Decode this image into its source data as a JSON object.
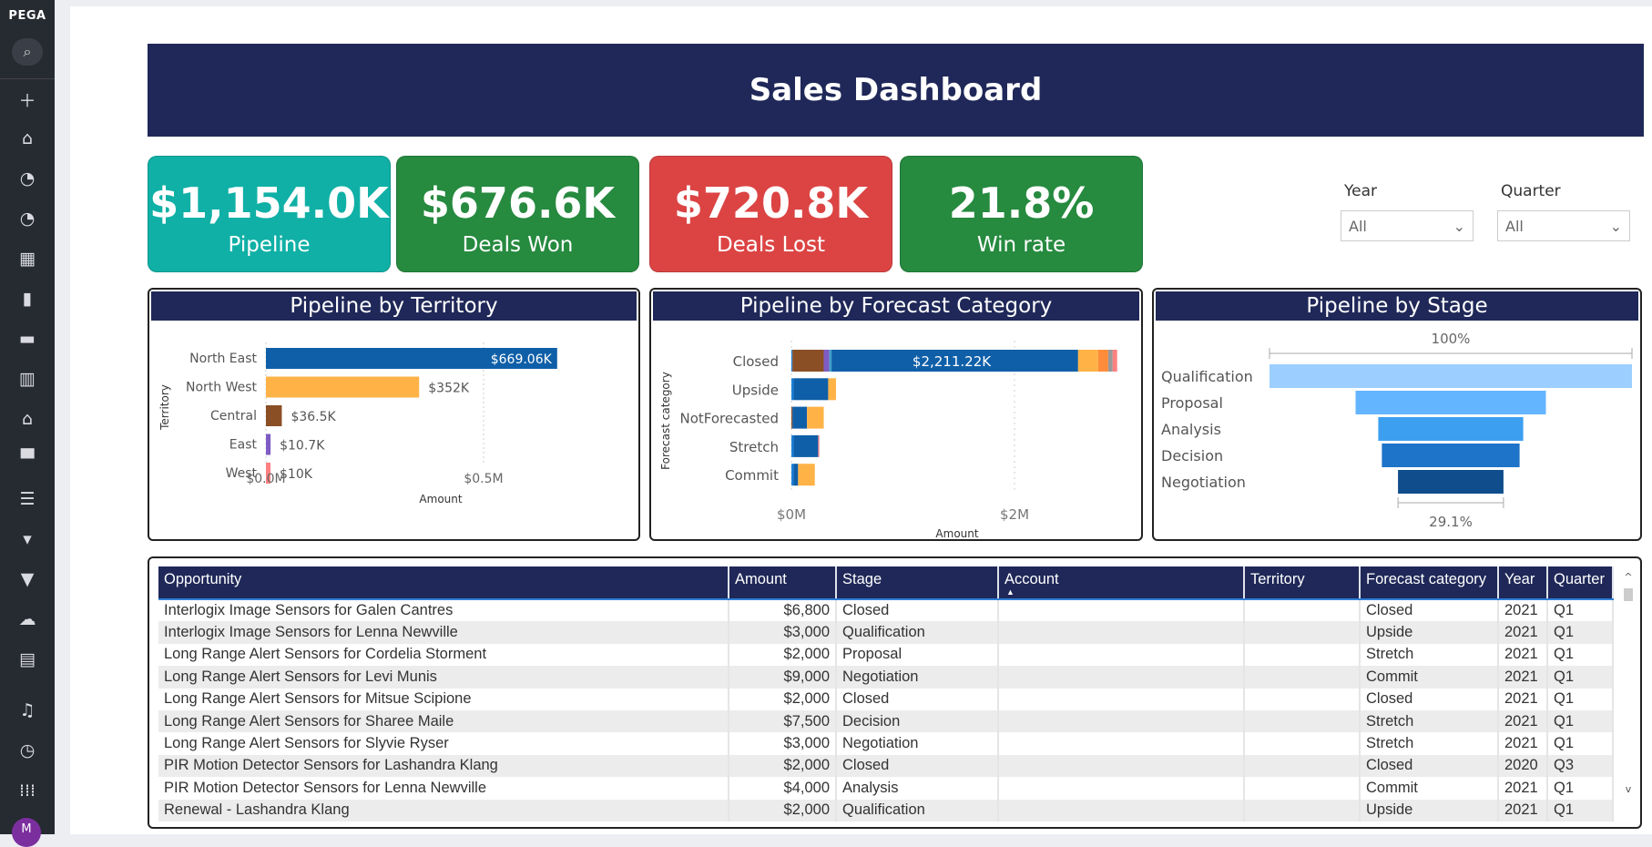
{
  "sidebar": {
    "logo": "PEGA",
    "avatar": "M",
    "icons": [
      "search-icon",
      "plus-icon",
      "home-icon",
      "gauge-icon",
      "gauge-icon-2",
      "grid-icon",
      "tag-icon",
      "inbox-icon",
      "buildings-icon",
      "house-icon",
      "folder-icon",
      "contacts-icon",
      "flashlight-icon",
      "funnel-icon",
      "weather-icon",
      "calendar-icon",
      "bell-icon",
      "history-icon",
      "apps-icon"
    ]
  },
  "header": {
    "title": "Sales Dashboard"
  },
  "kpis": [
    {
      "value": "$1,154.0K",
      "label": "Pipeline",
      "color": "#10b0a6"
    },
    {
      "value": "$676.6K",
      "label": "Deals Won",
      "color": "#268a3f"
    },
    {
      "value": "$720.8K",
      "label": "Deals Lost",
      "color": "#dc4444"
    },
    {
      "value": "21.8%",
      "label": "Win rate",
      "color": "#268a3f"
    }
  ],
  "filters": {
    "year_label": "Year",
    "year_value": "All",
    "quarter_label": "Quarter",
    "quarter_value": "All"
  },
  "chart_data": [
    {
      "type": "bar",
      "title": "Pipeline by Territory",
      "ylabel": "Territory",
      "xlabel": "Amount",
      "categories": [
        "North East",
        "North West",
        "Central",
        "East",
        "West"
      ],
      "values": [
        669060,
        352000,
        36500,
        10700,
        10000
      ],
      "labels": [
        "$669.06K",
        "$352K",
        "$36.5K",
        "$10.7K",
        "$10K"
      ],
      "colors": [
        "#0f5fa8",
        "#ffb347",
        "#8b4f25",
        "#7e5cc3",
        "#ff8080"
      ],
      "xticks": [
        "$0.0M",
        "$0.5M"
      ],
      "xlim": [
        0,
        700000
      ]
    },
    {
      "type": "bar",
      "stacked": true,
      "title": "Pipeline by Forecast Category",
      "ylabel": "Forecast category",
      "xlabel": "Amount",
      "categories": [
        "Closed",
        "Upside",
        "NotForecasted",
        "Stretch",
        "Commit"
      ],
      "segments": [
        [
          [
            0.01,
            "#1c7fd6"
          ],
          [
            0.28,
            "#8b4f25"
          ],
          [
            0.05,
            "#7e5cc3"
          ],
          [
            0.02,
            "#3fa0c8"
          ],
          [
            2.21,
            "#0f5fa8"
          ],
          [
            0.18,
            "#ffb347"
          ],
          [
            0.09,
            "#ff8c3a"
          ],
          [
            0.04,
            "#999999"
          ],
          [
            0.04,
            "#ff8080"
          ]
        ],
        [
          [
            0.02,
            "#1c7fd6"
          ],
          [
            0.31,
            "#0f5fa8"
          ],
          [
            0.07,
            "#ffb347"
          ]
        ],
        [
          [
            0.01,
            "#8b4f25"
          ],
          [
            0.13,
            "#0f5fa8"
          ],
          [
            0.15,
            "#ffb347"
          ]
        ],
        [
          [
            0.02,
            "#1c7fd6"
          ],
          [
            0.22,
            "#0f5fa8"
          ],
          [
            0.01,
            "#ff8080"
          ]
        ],
        [
          [
            0.02,
            "#1c7fd6"
          ],
          [
            0.04,
            "#0f5fa8"
          ],
          [
            0.15,
            "#ffb347"
          ]
        ]
      ],
      "data_label": "$2,211.22K",
      "xticks": [
        "$0M",
        "$2M"
      ],
      "xlim": [
        0,
        3.15
      ]
    },
    {
      "type": "funnel",
      "title": "Pipeline by Stage",
      "categories": [
        "Qualification",
        "Proposal",
        "Analysis",
        "Decision",
        "Negotiation"
      ],
      "values": [
        100,
        52.5,
        40,
        38,
        29.1
      ],
      "top_label": "100%",
      "bottom_label": "29.1%",
      "colors": [
        "#9ccfff",
        "#64b5ff",
        "#3d9ff0",
        "#1e74c8",
        "#0f4d8c"
      ]
    }
  ],
  "table": {
    "columns": [
      "Opportunity",
      "Amount",
      "Stage",
      "Account",
      "Territory",
      "Forecast category",
      "Year",
      "Quarter"
    ],
    "rows": [
      [
        "Interlogix Image Sensors for Galen Cantres",
        "$6,800",
        "Closed",
        "",
        "",
        "Closed",
        "2021",
        "Q1"
      ],
      [
        "Interlogix Image Sensors for Lenna Newville",
        "$3,000",
        "Qualification",
        "",
        "",
        "Upside",
        "2021",
        "Q1"
      ],
      [
        "Long Range Alert Sensors for Cordelia Storment",
        "$2,000",
        "Proposal",
        "",
        "",
        "Stretch",
        "2021",
        "Q1"
      ],
      [
        "Long Range Alert Sensors for Levi Munis",
        "$9,000",
        "Negotiation",
        "",
        "",
        "Commit",
        "2021",
        "Q1"
      ],
      [
        "Long Range Alert Sensors for Mitsue Scipione",
        "$2,000",
        "Closed",
        "",
        "",
        "Closed",
        "2021",
        "Q1"
      ],
      [
        "Long Range Alert Sensors for Sharee Maile",
        "$7,500",
        "Decision",
        "",
        "",
        "Stretch",
        "2021",
        "Q1"
      ],
      [
        "Long Range Alert Sensors for Slyvie Ryser",
        "$3,000",
        "Negotiation",
        "",
        "",
        "Stretch",
        "2021",
        "Q1"
      ],
      [
        "PIR Motion Detector Sensors for Lashandra Klang",
        "$2,000",
        "Closed",
        "",
        "",
        "Closed",
        "2020",
        "Q3"
      ],
      [
        "PIR Motion Detector Sensors for Lenna Newville",
        "$4,000",
        "Analysis",
        "",
        "",
        "Commit",
        "2021",
        "Q1"
      ],
      [
        "Renewal - Lashandra Klang",
        "$2,000",
        "Qualification",
        "",
        "",
        "Upside",
        "2021",
        "Q1"
      ]
    ]
  }
}
